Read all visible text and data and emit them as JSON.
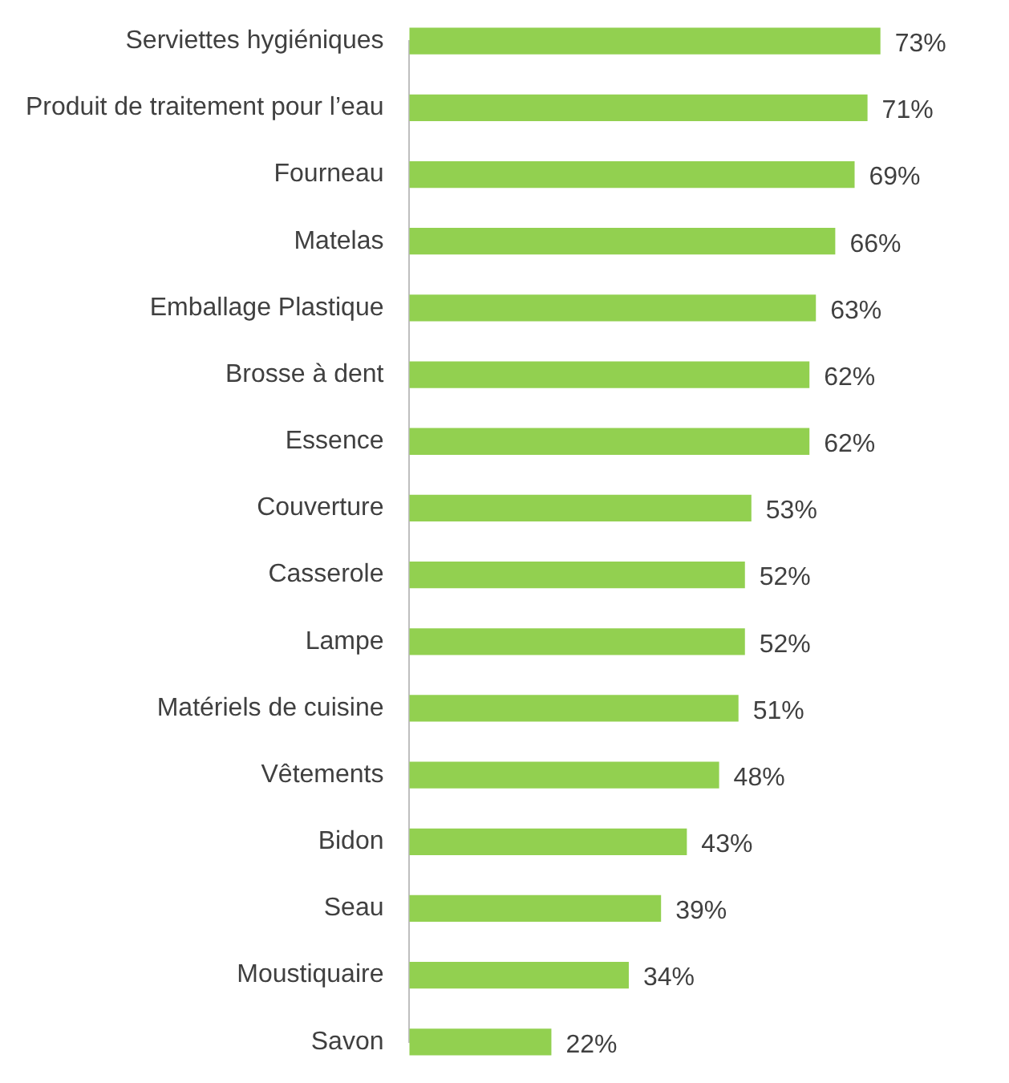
{
  "chart_data": {
    "type": "bar",
    "orientation": "horizontal",
    "categories": [
      "Serviettes hygiéniques",
      "Produit de traitement pour l’eau",
      "Fourneau",
      "Matelas",
      "Emballage Plastique",
      "Brosse à dent",
      "Essence",
      "Couverture",
      "Casserole",
      "Lampe",
      "Matériels de cuisine",
      "Vêtements",
      "Bidon",
      "Seau",
      "Moustiquaire",
      "Savon"
    ],
    "values": [
      73,
      71,
      69,
      66,
      63,
      62,
      62,
      53,
      52,
      52,
      51,
      48,
      43,
      39,
      34,
      22
    ],
    "value_labels": [
      "73%",
      "71%",
      "69%",
      "66%",
      "63%",
      "62%",
      "62%",
      "53%",
      "52%",
      "52%",
      "51%",
      "48%",
      "43%",
      "39%",
      "34%",
      "22%"
    ],
    "color": "#92d050",
    "grid": false,
    "legend": false,
    "tick_labels": "y"
  }
}
